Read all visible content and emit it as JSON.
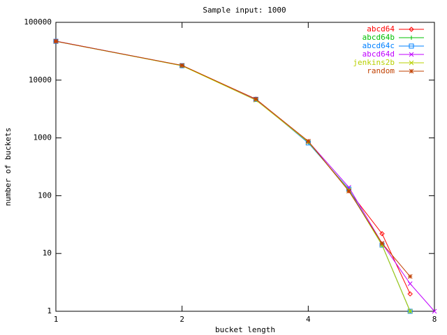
{
  "chart_data": {
    "type": "line",
    "title": "Sample input: 1000",
    "x_label": "bucket length",
    "y_label": "number of buckets",
    "x": [
      1,
      2,
      3,
      4,
      5,
      6,
      7,
      8
    ],
    "xscale": "log",
    "yscale": "log",
    "xlim": [
      1,
      8
    ],
    "xticks": [
      1,
      2,
      4,
      8
    ],
    "ylim": [
      1,
      100000
    ],
    "yticks": [
      1,
      10,
      100,
      1000,
      10000,
      100000
    ],
    "legend": "top-right",
    "series": [
      {
        "name": "abcd64",
        "color": "#ff0000",
        "marker": "diamond",
        "values": [
          47200,
          17800,
          4700,
          860,
          122,
          22,
          2,
          null
        ]
      },
      {
        "name": "abcd64b",
        "color": "#00c000",
        "marker": "plus",
        "values": [
          47000,
          17900,
          4600,
          850,
          125,
          14,
          1,
          null
        ]
      },
      {
        "name": "abcd64c",
        "color": "#0080ff",
        "marker": "square",
        "values": [
          47100,
          17800,
          4650,
          820,
          130,
          14,
          1,
          null
        ]
      },
      {
        "name": "abcd64d",
        "color": "#c000ff",
        "marker": "cross",
        "values": [
          47300,
          17900,
          4600,
          870,
          140,
          15,
          3,
          1
        ]
      },
      {
        "name": "jenkins2b",
        "color": "#b8d000",
        "marker": "cross",
        "values": [
          47000,
          17700,
          4500,
          850,
          125,
          14,
          1,
          null
        ]
      },
      {
        "name": "random",
        "color": "#c04000",
        "marker": "star",
        "values": [
          47000,
          18000,
          4700,
          880,
          120,
          15,
          4,
          null
        ]
      }
    ]
  }
}
